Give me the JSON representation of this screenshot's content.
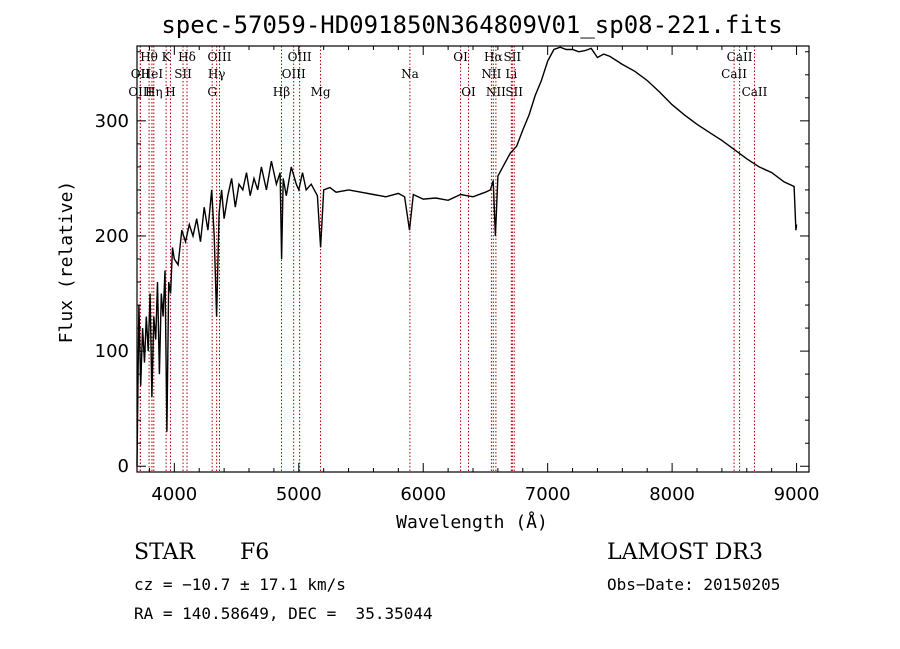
{
  "chart_data": {
    "type": "line",
    "title": "spec-57059-HD091850N364809V01_sp08-221.fits",
    "xlabel": "Wavelength (Å)",
    "ylabel": "Flux (relative)",
    "xlim": [
      3700,
      9100
    ],
    "ylim": [
      -5,
      365
    ],
    "xticks": [
      4000,
      5000,
      6000,
      7000,
      8000,
      9000
    ],
    "yticks": [
      0,
      100,
      200,
      300
    ],
    "series": [
      {
        "name": "flux",
        "x": [
          3700,
          3715,
          3730,
          3745,
          3760,
          3775,
          3790,
          3805,
          3820,
          3835,
          3850,
          3865,
          3880,
          3895,
          3910,
          3925,
          3940,
          3955,
          3970,
          3985,
          4000,
          4030,
          4060,
          4090,
          4120,
          4150,
          4180,
          4210,
          4240,
          4270,
          4300,
          4320,
          4340,
          4360,
          4380,
          4400,
          4430,
          4460,
          4490,
          4520,
          4550,
          4580,
          4610,
          4640,
          4670,
          4700,
          4740,
          4780,
          4820,
          4850,
          4862,
          4875,
          4900,
          4940,
          4980,
          5000,
          5030,
          5060,
          5100,
          5150,
          5175,
          5200,
          5250,
          5300,
          5400,
          5500,
          5600,
          5700,
          5800,
          5850,
          5890,
          5920,
          6000,
          6100,
          6200,
          6300,
          6400,
          6500,
          6540,
          6562,
          6580,
          6600,
          6650,
          6700,
          6750,
          6800,
          6850,
          6900,
          6950,
          7000,
          7050,
          7100,
          7150,
          7200,
          7250,
          7300,
          7350,
          7400,
          7450,
          7500,
          7600,
          7700,
          7800,
          7900,
          8000,
          8100,
          8200,
          8300,
          8400,
          8500,
          8600,
          8700,
          8800,
          8900,
          8980,
          8995,
          9000
        ],
        "y": [
          0,
          140,
          70,
          120,
          90,
          130,
          100,
          150,
          60,
          130,
          110,
          160,
          80,
          150,
          130,
          170,
          30,
          160,
          150,
          190,
          180,
          175,
          205,
          195,
          210,
          200,
          215,
          195,
          225,
          205,
          240,
          200,
          130,
          220,
          240,
          215,
          235,
          250,
          225,
          245,
          240,
          255,
          235,
          250,
          240,
          260,
          240,
          265,
          245,
          255,
          180,
          250,
          235,
          260,
          245,
          240,
          255,
          240,
          245,
          235,
          190,
          240,
          242,
          238,
          240,
          238,
          236,
          234,
          237,
          234,
          205,
          236,
          232,
          233,
          231,
          236,
          234,
          238,
          240,
          248,
          200,
          252,
          262,
          272,
          278,
          292,
          305,
          322,
          335,
          352,
          362,
          364,
          362,
          362,
          360,
          361,
          363,
          355,
          358,
          356,
          349,
          343,
          335,
          325,
          314,
          305,
          297,
          290,
          283,
          275,
          267,
          260,
          255,
          247,
          243,
          205,
          210
        ]
      }
    ],
    "spectral_lines": [
      {
        "label": "OII",
        "wavelength": 3727,
        "row": 2
      },
      {
        "label": "OIII",
        "wavelength": 3727,
        "row": 3
      },
      {
        "label": "Hθ",
        "wavelength": 3797,
        "row": 1
      },
      {
        "label": "HeI",
        "wavelength": 3820,
        "row": 2
      },
      {
        "label": "Hη",
        "wavelength": 3835,
        "row": 3
      },
      {
        "label": "K",
        "wavelength": 3934,
        "row": 1
      },
      {
        "label": "SII",
        "wavelength": 4070,
        "row": 2
      },
      {
        "label": "H",
        "wavelength": 3969,
        "row": 3
      },
      {
        "label": "Hδ",
        "wavelength": 4102,
        "row": 1
      },
      {
        "label": "OIII",
        "wavelength": 4363,
        "row": 1
      },
      {
        "label": "Hγ",
        "wavelength": 4340,
        "row": 2
      },
      {
        "label": "G",
        "wavelength": 4304,
        "row": 3
      },
      {
        "label": "Hβ",
        "wavelength": 4861,
        "row": 3
      },
      {
        "label": "OIII",
        "wavelength": 5007,
        "row": 1
      },
      {
        "label": "OIII",
        "wavelength": 4959,
        "row": 2
      },
      {
        "label": "Mg",
        "wavelength": 5175,
        "row": 3
      },
      {
        "label": "Na",
        "wavelength": 5893,
        "row": 2
      },
      {
        "label": "OI",
        "wavelength": 6300,
        "row": 1
      },
      {
        "label": "OI",
        "wavelength": 6364,
        "row": 3
      },
      {
        "label": "Hα",
        "wavelength": 6563,
        "row": 1
      },
      {
        "label": "NII",
        "wavelength": 6548,
        "row": 2
      },
      {
        "label": "NII",
        "wavelength": 6584,
        "row": 3
      },
      {
        "label": "SII",
        "wavelength": 6716,
        "row": 1
      },
      {
        "label": "Li",
        "wavelength": 6708,
        "row": 2
      },
      {
        "label": "SII",
        "wavelength": 6731,
        "row": 3
      },
      {
        "label": "CaII",
        "wavelength": 8542,
        "row": 1
      },
      {
        "label": "CaII",
        "wavelength": 8498,
        "row": 2
      },
      {
        "label": "CaII",
        "wavelength": 8662,
        "row": 3
      }
    ]
  },
  "info": {
    "object_class": "STAR",
    "subclass": "F6",
    "survey": "LAMOST DR3",
    "redshift": "cz = −10.7 ± 17.1 km/s",
    "obs_date": "Obs−Date: 20150205",
    "coords": "RA = 140.58649, DEC =  35.35044"
  },
  "colors": {
    "spectrum": "#000000",
    "line_marker": "#b00000"
  }
}
